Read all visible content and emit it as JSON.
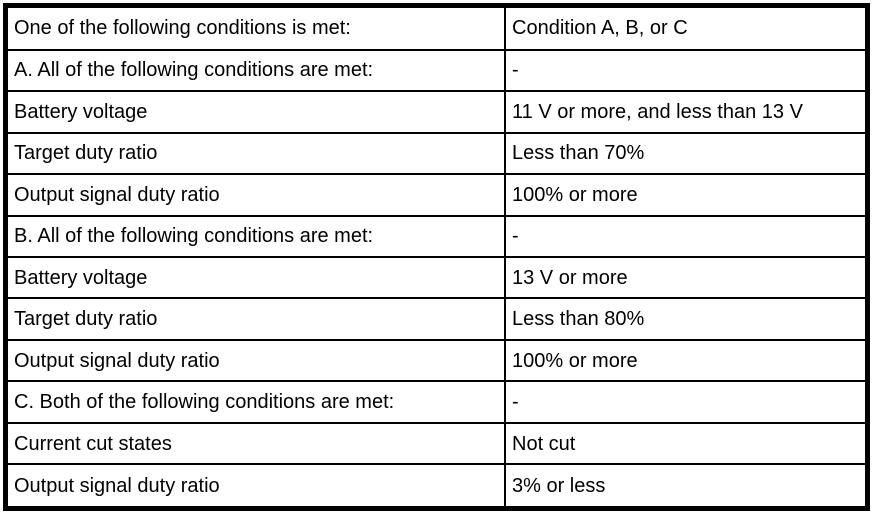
{
  "table": {
    "colors": {
      "border": "#000000",
      "background": "#ffffff",
      "text": "#000000"
    },
    "rows": [
      {
        "label": "One of the following conditions is met:",
        "value": "Condition A, B, or C"
      },
      {
        "label": "A. All of the following conditions are met:",
        "value": "-"
      },
      {
        "label": "Battery voltage",
        "value": "11 V or more, and less than 13 V"
      },
      {
        "label": "Target duty ratio",
        "value": "Less than 70%"
      },
      {
        "label": "Output signal duty ratio",
        "value": "100% or more"
      },
      {
        "label": "B. All of the following conditions are met:",
        "value": "-"
      },
      {
        "label": "Battery voltage",
        "value": "13 V or more"
      },
      {
        "label": "Target duty ratio",
        "value": "Less than 80%"
      },
      {
        "label": "Output signal duty ratio",
        "value": "100% or more"
      },
      {
        "label": "C. Both of the following conditions are met:",
        "value": "-"
      },
      {
        "label": "Current cut states",
        "value": "Not cut"
      },
      {
        "label": "Output signal duty ratio",
        "value": "3% or less"
      }
    ]
  }
}
